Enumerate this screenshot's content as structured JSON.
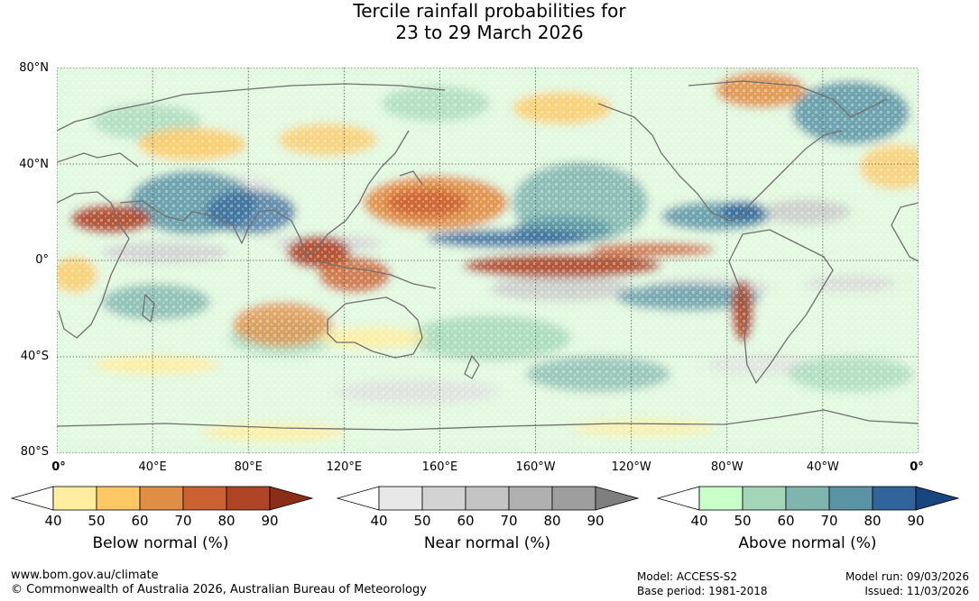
{
  "title": {
    "line1": "Tercile rainfall probabilities for",
    "line2": "23 to 29 March 2026"
  },
  "map": {
    "lat_labels": [
      "80°N",
      "40°N",
      "0°",
      "40°S",
      "80°S"
    ],
    "lat_values": [
      80,
      40,
      0,
      -40,
      -80
    ],
    "lon_labels": [
      "0°",
      "40°E",
      "80°E",
      "120°E",
      "160°E",
      "160°W",
      "120°W",
      "80°W",
      "40°W",
      "0°"
    ],
    "lon_values": [
      0,
      40,
      80,
      120,
      160,
      200,
      240,
      280,
      320,
      360
    ],
    "lon_range": [
      0,
      360
    ],
    "lat_range": [
      -80,
      80
    ],
    "gridlines": true
  },
  "colorbars": [
    {
      "name": "below",
      "title": "Below normal (%)",
      "ticks": [
        "40",
        "50",
        "60",
        "70",
        "80",
        "90"
      ],
      "colors": [
        "#ffffff",
        "#ffeda0",
        "#fec965",
        "#e08d45",
        "#cb6132",
        "#ad4526",
        "#8b2e18"
      ]
    },
    {
      "name": "near",
      "title": "Near normal (%)",
      "ticks": [
        "40",
        "50",
        "60",
        "70",
        "80",
        "90"
      ],
      "colors": [
        "#ffffff",
        "#e8e8e8",
        "#d3d3d3",
        "#c4c4c4",
        "#b0b0b0",
        "#9e9e9e",
        "#7f7f7f"
      ]
    },
    {
      "name": "above",
      "title": "Above normal (%)",
      "ticks": [
        "40",
        "50",
        "60",
        "70",
        "80",
        "90"
      ],
      "colors": [
        "#ffffff",
        "#c9ffc9",
        "#a3d6b8",
        "#80b5ae",
        "#5a94a4",
        "#31649a",
        "#17467f"
      ]
    }
  ],
  "footer": {
    "url": "www.bom.gov.au/climate",
    "copyright": "© Commonwealth of Australia 2026, Australian Bureau of Meteorology",
    "model": "Model: ACCESS-S2",
    "base_period": "Base period: 1981-2018",
    "model_run": "Model run: 09/03/2026",
    "issued": "Issued: 11/03/2026"
  }
}
